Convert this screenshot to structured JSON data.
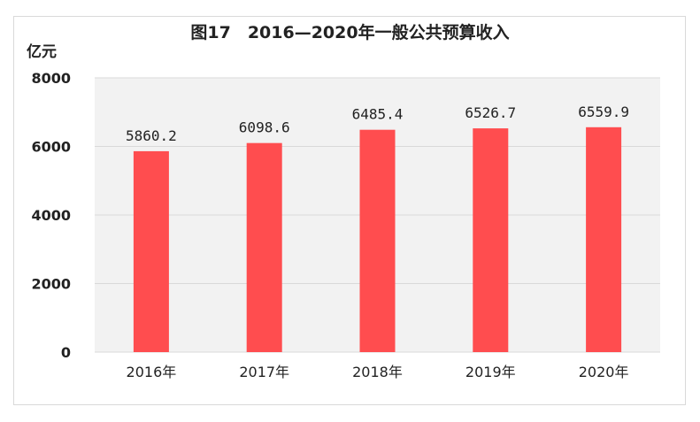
{
  "chart_data": {
    "type": "bar",
    "title": "图17　2016—2020年一般公共预算收入",
    "unit_label": "亿元",
    "categories": [
      "2016年",
      "2017年",
      "2018年",
      "2019年",
      "2020年"
    ],
    "values": [
      5860.2,
      6098.6,
      6485.4,
      6526.7,
      6559.9
    ],
    "value_labels": [
      "5860.2",
      "6098.6",
      "6485.4",
      "6526.7",
      "6559.9"
    ],
    "ylim": [
      0,
      8000
    ],
    "yticks": [
      0,
      2000,
      4000,
      6000,
      8000
    ],
    "grid": true,
    "legend": "none",
    "colors": {
      "bar": "#ff4d4f",
      "plot_bg": "#f2f2f2",
      "grid": "#d9d9d9"
    }
  }
}
